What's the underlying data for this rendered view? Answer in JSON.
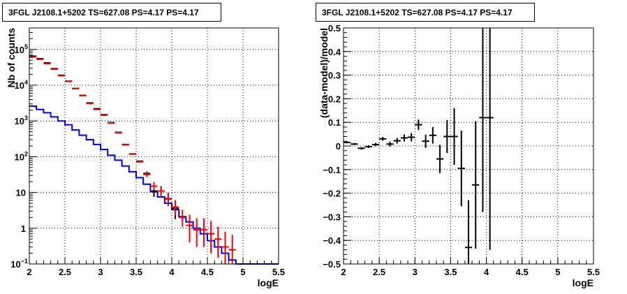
{
  "chart_data": [
    {
      "type": "line",
      "title": "3FGL J2108.1+5202 TS=627.08 PS=4.17 PS=4.17",
      "xlabel": "logE",
      "ylabel": "Nb of counts",
      "xlim": [
        2,
        5.5
      ],
      "ylim": [
        0.1,
        400000
      ],
      "yscale": "log",
      "grid": true,
      "x_ticks": [
        "2",
        "2.5",
        "3",
        "3.5",
        "4",
        "4.5",
        "5",
        "5.5"
      ],
      "y_ticks": [
        {
          "v": 0.1,
          "label": "10",
          "sup": "−1"
        },
        {
          "v": 1,
          "label": "1",
          "sup": ""
        },
        {
          "v": 10,
          "label": "10",
          "sup": ""
        },
        {
          "v": 100,
          "label": "10",
          "sup": "2"
        },
        {
          "v": 1000,
          "label": "10",
          "sup": "3"
        },
        {
          "v": 10000,
          "label": "10",
          "sup": "4"
        },
        {
          "v": 100000,
          "label": "10",
          "sup": "5"
        }
      ],
      "series": [
        {
          "kind": "step",
          "color": "#0000ff",
          "x": [
            2.0,
            2.1,
            2.2,
            2.3,
            2.4,
            2.5,
            2.6,
            2.7,
            2.8,
            2.9,
            3.0,
            3.1,
            3.2,
            3.3,
            3.4,
            3.5,
            3.6,
            3.7,
            3.8,
            3.9,
            4.0,
            4.1,
            4.2,
            4.3,
            4.4,
            4.5,
            4.6,
            4.7,
            4.8,
            4.9,
            5.0,
            5.1,
            5.2,
            5.3,
            5.4
          ],
          "y": [
            2600,
            2100,
            1700,
            1300,
            1000,
            780,
            560,
            400,
            300,
            220,
            160,
            110,
            80,
            55,
            38,
            26,
            17,
            11,
            7.5,
            5,
            3.3,
            2.1,
            1.5,
            1.0,
            0.7,
            0.45,
            0.3,
            0.2,
            0.13,
            0.1,
            0.1,
            0.1,
            0.1,
            0.1,
            0.1
          ]
        },
        {
          "kind": "points",
          "color": "#000000",
          "x": [
            2.05,
            2.15,
            2.25,
            2.35,
            2.45,
            2.55,
            2.65,
            2.75,
            2.85,
            2.95,
            3.05,
            3.15,
            3.25,
            3.35,
            3.45,
            3.55,
            3.65,
            3.75,
            3.85,
            3.95,
            4.05
          ],
          "y": [
            65000,
            55000,
            42000,
            29000,
            19000,
            13000,
            8100,
            5200,
            3200,
            2200,
            1500,
            900,
            480,
            220,
            120,
            75,
            34,
            10.5,
            11,
            6.7,
            3.6
          ],
          "err_low": [
            0,
            0,
            0,
            0,
            0,
            0,
            0,
            0,
            0,
            0,
            0,
            0,
            0,
            0,
            0,
            0,
            4,
            3,
            3,
            2.5,
            1.8
          ],
          "err_high": [
            0,
            0,
            0,
            0,
            0,
            0,
            0,
            0,
            0,
            0,
            0,
            0,
            0,
            0,
            0,
            0,
            5,
            4,
            4,
            3,
            2.2
          ]
        },
        {
          "kind": "points",
          "color": "#ff0000",
          "x": [
            2.05,
            2.15,
            2.25,
            2.35,
            2.45,
            2.55,
            2.65,
            2.75,
            2.85,
            2.95,
            3.05,
            3.15,
            3.25,
            3.35,
            3.45,
            3.55,
            3.65,
            3.75,
            3.85,
            3.95,
            4.05,
            4.15,
            4.25,
            4.35,
            4.45,
            4.55,
            4.65,
            4.75,
            4.85
          ],
          "y": [
            62000,
            53000,
            40000,
            28000,
            18500,
            12800,
            8000,
            5100,
            3100,
            2100,
            1450,
            880,
            470,
            215,
            118,
            72,
            32,
            15,
            11,
            6.5,
            3.9,
            2.0,
            1.2,
            0.9,
            0.9,
            0.7,
            0.5,
            0.3,
            0.25
          ],
          "err_low": [
            0,
            0,
            0,
            0,
            0,
            0,
            0,
            0,
            0,
            0,
            0,
            0,
            0,
            0,
            0,
            0,
            5,
            3.5,
            3,
            2.2,
            1.6,
            0.9,
            0.8,
            0.6,
            0.6,
            0.5,
            0.35,
            0.2,
            0.15
          ],
          "err_high": [
            0,
            0,
            0,
            0,
            0,
            0,
            0,
            0,
            0,
            0,
            0,
            0,
            0,
            0,
            0,
            0,
            6,
            4.5,
            4,
            3,
            2.2,
            1.3,
            1.2,
            1.0,
            1.0,
            0.9,
            0.6,
            0.5,
            0.4
          ]
        }
      ]
    },
    {
      "type": "scatter",
      "title": "3FGL J2108.1+5202 TS=627.08 PS=4.17 PS=4.17",
      "xlabel": "logE",
      "ylabel": "(data-model)/model",
      "xlim": [
        2,
        5.5
      ],
      "ylim": [
        -0.5,
        0.5
      ],
      "grid": true,
      "x_ticks": [
        "2",
        "2.5",
        "3",
        "3.5",
        "4",
        "4.5",
        "5",
        "5.5"
      ],
      "y_ticks": [
        "−0.5",
        "−0.4",
        "−0.3",
        "−0.2",
        "−0.1",
        "0",
        "0.1",
        "0.2",
        "0.3",
        "0.4",
        "0.5"
      ],
      "series": [
        {
          "color": "#000000",
          "x": [
            2.05,
            2.15,
            2.25,
            2.35,
            2.45,
            2.55,
            2.65,
            2.75,
            2.85,
            2.95,
            3.05,
            3.15,
            3.25,
            3.35,
            3.45,
            3.55,
            3.65,
            3.75,
            3.85,
            3.95,
            4.05
          ],
          "y": [
            0.015,
            0.008,
            -0.01,
            -0.003,
            0.006,
            0.03,
            0.008,
            0.022,
            0.034,
            0.037,
            0.09,
            0.02,
            0.045,
            -0.055,
            0.04,
            0.04,
            -0.095,
            -0.43,
            -0.165,
            0.12,
            0.12
          ],
          "err": [
            0.004,
            0.004,
            0.005,
            0.006,
            0.007,
            0.008,
            0.01,
            0.012,
            0.015,
            0.018,
            0.022,
            0.028,
            0.035,
            0.06,
            0.07,
            0.12,
            0.16,
            0.2,
            0.27,
            0.4,
            0.56
          ]
        }
      ]
    }
  ]
}
